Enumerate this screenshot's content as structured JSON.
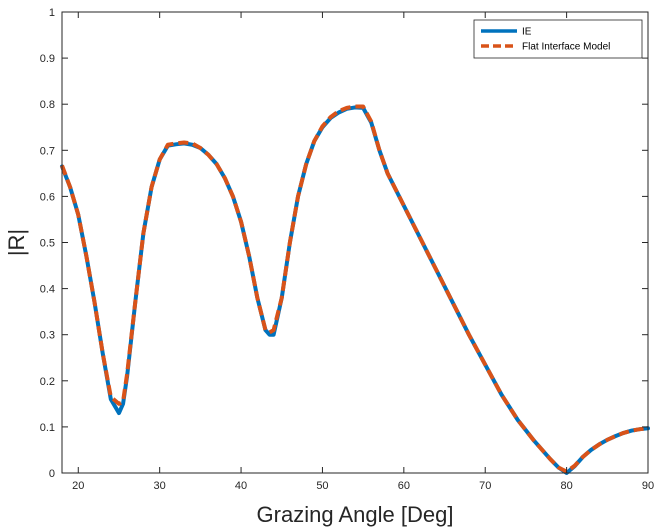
{
  "chart_data": {
    "type": "line",
    "title": "",
    "xlabel": "Grazing Angle [Deg]",
    "ylabel": "|R|",
    "xlim": [
      18,
      90
    ],
    "ylim": [
      0,
      1
    ],
    "xticks": [
      20,
      30,
      40,
      50,
      60,
      70,
      80,
      90
    ],
    "yticks": [
      0,
      0.1,
      0.2,
      0.3,
      0.4,
      0.5,
      0.6,
      0.7,
      0.8,
      0.9,
      1
    ],
    "grid": false,
    "legend_position": "top-right",
    "colors": {
      "IE": "#0072BD",
      "Flat Interface Model": "#D95319"
    },
    "series": [
      {
        "name": "IE",
        "style": "solid",
        "x": [
          18,
          19,
          20,
          21,
          22,
          23,
          24,
          25,
          25.5,
          26,
          27,
          28,
          29,
          30,
          31,
          32,
          33,
          34,
          35,
          36,
          37,
          38,
          39,
          40,
          41,
          42,
          43,
          43.5,
          44,
          45,
          46,
          47,
          48,
          49,
          50,
          51,
          52,
          53,
          54,
          55,
          56,
          57,
          58,
          60,
          62,
          64,
          66,
          68,
          70,
          72,
          74,
          76,
          78,
          79,
          80,
          81,
          82,
          83,
          84,
          85,
          86,
          87,
          88,
          89,
          90
        ],
        "y": [
          0.665,
          0.62,
          0.56,
          0.47,
          0.37,
          0.26,
          0.16,
          0.13,
          0.15,
          0.21,
          0.37,
          0.52,
          0.62,
          0.68,
          0.71,
          0.713,
          0.715,
          0.712,
          0.705,
          0.69,
          0.67,
          0.64,
          0.6,
          0.545,
          0.47,
          0.38,
          0.31,
          0.3,
          0.3,
          0.38,
          0.5,
          0.6,
          0.67,
          0.72,
          0.75,
          0.77,
          0.782,
          0.79,
          0.793,
          0.792,
          0.76,
          0.7,
          0.65,
          0.58,
          0.51,
          0.44,
          0.37,
          0.3,
          0.235,
          0.17,
          0.115,
          0.07,
          0.03,
          0.012,
          0.0,
          0.015,
          0.035,
          0.05,
          0.062,
          0.072,
          0.08,
          0.087,
          0.092,
          0.095,
          0.097
        ]
      },
      {
        "name": "Flat Interface Model",
        "style": "dashed",
        "x": [
          18,
          19,
          20,
          21,
          22,
          23,
          24,
          25,
          25.5,
          26,
          27,
          28,
          29,
          30,
          31,
          32,
          33,
          34,
          35,
          36,
          37,
          38,
          39,
          40,
          41,
          42,
          43,
          43.5,
          44,
          45,
          46,
          47,
          48,
          49,
          50,
          51,
          52,
          53,
          54,
          55,
          56,
          57,
          58,
          60,
          62,
          64,
          66,
          68,
          70,
          72,
          74,
          76,
          78,
          79,
          80,
          81,
          82,
          83,
          84,
          85,
          86,
          87,
          88,
          89,
          90
        ],
        "y": [
          0.667,
          0.62,
          0.56,
          0.47,
          0.37,
          0.26,
          0.165,
          0.15,
          0.155,
          0.215,
          0.37,
          0.52,
          0.62,
          0.68,
          0.712,
          0.715,
          0.717,
          0.715,
          0.705,
          0.69,
          0.67,
          0.64,
          0.6,
          0.545,
          0.47,
          0.38,
          0.31,
          0.305,
          0.31,
          0.38,
          0.5,
          0.6,
          0.67,
          0.72,
          0.752,
          0.772,
          0.785,
          0.792,
          0.795,
          0.795,
          0.762,
          0.7,
          0.65,
          0.58,
          0.51,
          0.44,
          0.37,
          0.3,
          0.235,
          0.17,
          0.115,
          0.07,
          0.03,
          0.012,
          0.003,
          0.016,
          0.035,
          0.05,
          0.062,
          0.072,
          0.08,
          0.087,
          0.092,
          0.095,
          0.097
        ]
      }
    ]
  }
}
